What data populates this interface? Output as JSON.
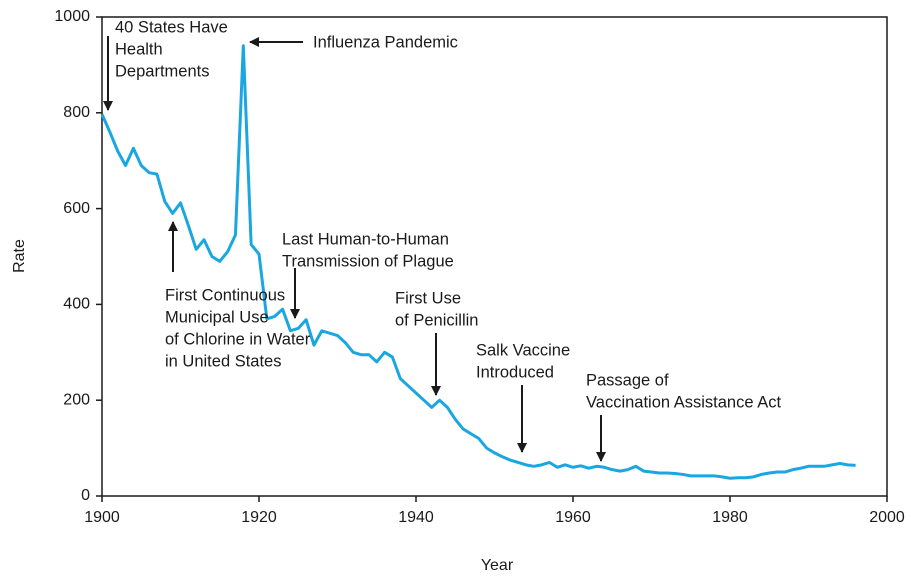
{
  "chart_data": {
    "type": "line",
    "x_label": "Year",
    "y_label": "Rate",
    "xlim": [
      1900,
      2000
    ],
    "xticks": [
      1900,
      1920,
      1940,
      1960,
      1980,
      2000
    ],
    "ylim": [
      0,
      1000
    ],
    "yticks": [
      0,
      200,
      400,
      600,
      800,
      1000
    ],
    "series": [
      {
        "color": "#1aa7e1",
        "x": [
          1900,
          1901,
          1902,
          1903,
          1904,
          1905,
          1906,
          1907,
          1908,
          1909,
          1910,
          1911,
          1912,
          1913,
          1914,
          1915,
          1916,
          1917,
          1918,
          1919,
          1920,
          1921,
          1922,
          1923,
          1924,
          1925,
          1926,
          1927,
          1928,
          1929,
          1930,
          1931,
          1932,
          1933,
          1934,
          1935,
          1936,
          1937,
          1938,
          1939,
          1940,
          1941,
          1942,
          1943,
          1944,
          1945,
          1946,
          1947,
          1948,
          1949,
          1950,
          1951,
          1952,
          1953,
          1954,
          1955,
          1956,
          1957,
          1958,
          1959,
          1960,
          1961,
          1962,
          1963,
          1964,
          1965,
          1966,
          1967,
          1968,
          1969,
          1970,
          1971,
          1972,
          1973,
          1974,
          1975,
          1976,
          1977,
          1978,
          1979,
          1980,
          1981,
          1982,
          1983,
          1984,
          1985,
          1986,
          1987,
          1988,
          1989,
          1990,
          1991,
          1992,
          1993,
          1994,
          1995,
          1996
        ],
        "values": [
          797,
          760,
          720,
          690,
          726,
          690,
          675,
          672,
          615,
          590,
          612,
          565,
          515,
          535,
          500,
          490,
          510,
          545,
          940,
          525,
          505,
          370,
          375,
          390,
          345,
          350,
          368,
          315,
          345,
          340,
          335,
          320,
          300,
          295,
          295,
          280,
          300,
          290,
          245,
          230,
          215,
          200,
          185,
          200,
          185,
          160,
          140,
          130,
          120,
          100,
          90,
          82,
          75,
          70,
          65,
          62,
          65,
          70,
          60,
          65,
          60,
          63,
          58,
          62,
          60,
          55,
          52,
          55,
          62,
          52,
          50,
          48,
          48,
          47,
          45,
          42,
          42,
          42,
          42,
          40,
          37,
          38,
          38,
          40,
          45,
          48,
          50,
          50,
          55,
          58,
          62,
          62,
          62,
          65,
          68,
          65,
          64
        ]
      }
    ],
    "annotations": [
      {
        "lines": [
          "40 States Have",
          "Health",
          "Departments"
        ]
      },
      {
        "lines": [
          "Influenza Pandemic"
        ]
      },
      {
        "lines": [
          "First Continuous",
          "Municipal Use",
          "of Chlorine in Water",
          "in United States"
        ]
      },
      {
        "lines": [
          "Last Human-to-Human",
          "Transmission of Plague"
        ]
      },
      {
        "lines": [
          "First Use",
          "of Penicillin"
        ]
      },
      {
        "lines": [
          "Salk Vaccine",
          "Introduced"
        ]
      },
      {
        "lines": [
          "Passage of",
          "Vaccination Assistance Act"
        ]
      }
    ]
  }
}
